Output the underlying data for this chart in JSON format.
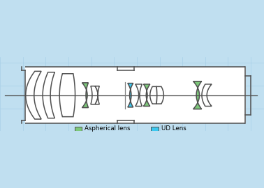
{
  "bg_color": "#c0dff0",
  "grid_color": "#a8d0e8",
  "white": "#ffffff",
  "outline": "#505050",
  "aspherical_color": "#7dc87a",
  "ud_color": "#3cc8f0",
  "legend_aspherical": "Aspherical lens",
  "legend_ud": "UD Lens",
  "figsize": [
    3.78,
    2.7
  ],
  "dpi": 100,
  "lw": 1.1,
  "axis_y": 0.0,
  "xlim": [
    -0.5,
    10.5
  ],
  "ylim": [
    -1.5,
    1.6
  ]
}
